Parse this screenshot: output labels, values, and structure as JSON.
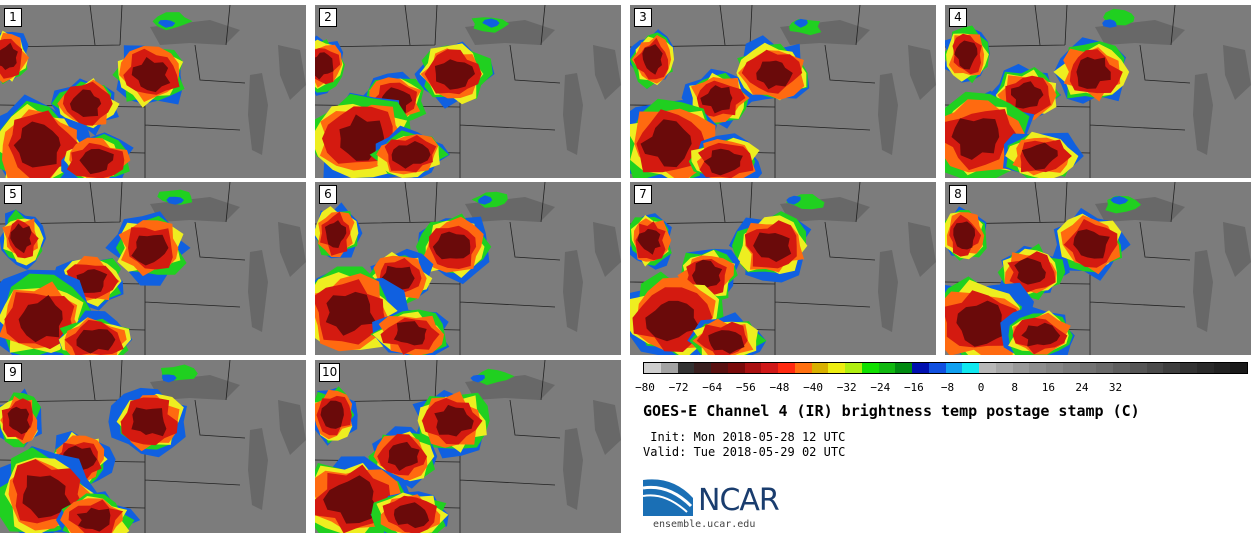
{
  "panels": [
    {
      "label": "1"
    },
    {
      "label": "2"
    },
    {
      "label": "3"
    },
    {
      "label": "4"
    },
    {
      "label": "5"
    },
    {
      "label": "6"
    },
    {
      "label": "7"
    },
    {
      "label": "8"
    },
    {
      "label": "9"
    },
    {
      "label": "10"
    }
  ],
  "colorbar": {
    "colors": [
      "#cfcfcf",
      "#a3a3a3",
      "#333333",
      "#3a2020",
      "#5a1010",
      "#7a0a0a",
      "#aa1010",
      "#d01818",
      "#ff2a10",
      "#ff7010",
      "#d8b000",
      "#eded10",
      "#b0ee10",
      "#10e000",
      "#10b810",
      "#008a10",
      "#0010b0",
      "#1050e0",
      "#10a0f0",
      "#10e8f0",
      "#b8b8b8",
      "#a8a8a8",
      "#9a9a9a",
      "#8e8e8e",
      "#858585",
      "#7c7c7c",
      "#737373",
      "#6a6a6a",
      "#5f5f5f",
      "#555555",
      "#4a4a4a",
      "#3e3e3e",
      "#333333",
      "#2a2a2a",
      "#222222",
      "#1a1a1a"
    ],
    "ticks": [
      "−80",
      "−72",
      "−64",
      "−56",
      "−48",
      "−40",
      "−32",
      "−24",
      "−16",
      "−8",
      "0",
      "8",
      "16",
      "24",
      "32"
    ]
  },
  "title": "GOES-E Channel 4 (IR) brightness temp postage stamp (C)",
  "init": " Init: Mon 2018-05-28 12 UTC",
  "valid": "Valid: Tue 2018-05-29 02 UTC",
  "logo": {
    "name": "NCAR",
    "url": "ensemble.ucar.edu"
  },
  "colors": {
    "land": "#7c7c7c",
    "lake": "#686868",
    "storm_dark": "#6a0a0a",
    "storm_red": "#d41a10",
    "storm_orange": "#ff6a10",
    "storm_yellow": "#eeee20",
    "storm_green": "#20d020",
    "storm_blue": "#1060e0"
  }
}
